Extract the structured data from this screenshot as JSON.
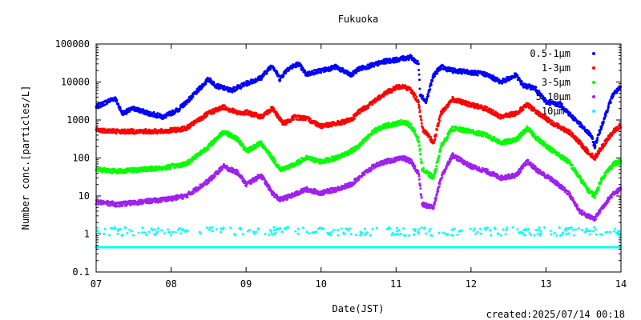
{
  "chart_data": {
    "type": "scatter",
    "title": "Fukuoka",
    "xlabel": "Date(JST)",
    "ylabel": "Number conc.[particles/L]",
    "y_scale": "log",
    "ylim": [
      0.1,
      100000
    ],
    "xlim": [
      7,
      14
    ],
    "x_ticks": [
      "07",
      "08",
      "09",
      "10",
      "11",
      "12",
      "13",
      "14"
    ],
    "y_ticks": [
      "0.1",
      "1",
      "10",
      "100",
      "1000",
      "10000",
      "100000"
    ],
    "legend_position": "top-right",
    "grid": false,
    "footer": "created:2025/07/14 00:18",
    "series": [
      {
        "name": "0.5-1μm",
        "color": "#0000ff",
        "x": [
          7.0,
          7.25,
          7.35,
          7.5,
          7.7,
          7.9,
          8.1,
          8.3,
          8.5,
          8.6,
          8.8,
          9.0,
          9.2,
          9.35,
          9.45,
          9.55,
          9.7,
          9.8,
          10.0,
          10.2,
          10.4,
          10.5,
          10.7,
          10.85,
          11.0,
          11.1,
          11.2,
          11.3,
          11.32,
          11.4,
          11.5,
          11.6,
          11.75,
          12.0,
          12.2,
          12.4,
          12.6,
          12.7,
          12.85,
          13.0,
          13.2,
          13.35,
          13.4,
          13.5,
          13.6,
          13.65,
          13.7,
          13.8,
          13.9,
          14.0
        ],
        "y": [
          2200,
          3800,
          1500,
          2000,
          1500,
          1200,
          1900,
          4500,
          12000,
          8000,
          6000,
          9000,
          13000,
          28000,
          12000,
          22000,
          30000,
          16000,
          20000,
          25000,
          15000,
          22000,
          28000,
          35000,
          38000,
          42000,
          45000,
          30000,
          5000,
          3000,
          15000,
          25000,
          20000,
          18000,
          16000,
          10000,
          15000,
          8000,
          7000,
          3000,
          2500,
          1200,
          1000,
          600,
          400,
          200,
          400,
          1500,
          5000,
          7000
        ]
      },
      {
        "name": "1-3μm",
        "color": "#ff0000",
        "x": [
          7.0,
          7.3,
          7.6,
          7.9,
          8.2,
          8.5,
          8.7,
          8.9,
          9.0,
          9.2,
          9.35,
          9.5,
          9.65,
          9.8,
          10.0,
          10.2,
          10.4,
          10.5,
          10.7,
          10.85,
          11.0,
          11.1,
          11.2,
          11.3,
          11.35,
          11.5,
          11.6,
          11.75,
          12.0,
          12.2,
          12.4,
          12.6,
          12.75,
          12.9,
          13.1,
          13.3,
          13.45,
          13.55,
          13.65,
          13.75,
          13.9,
          14.0
        ],
        "y": [
          550,
          500,
          500,
          500,
          600,
          1500,
          2200,
          1500,
          1600,
          1200,
          2000,
          800,
          1200,
          1100,
          700,
          800,
          1000,
          1600,
          3000,
          5000,
          7000,
          8000,
          6000,
          3000,
          600,
          250,
          1500,
          3500,
          2500,
          2000,
          1200,
          1500,
          2500,
          1500,
          800,
          500,
          250,
          150,
          100,
          200,
          500,
          700
        ]
      },
      {
        "name": "3-5μm",
        "color": "#00ff00",
        "x": [
          7.0,
          7.3,
          7.6,
          7.9,
          8.2,
          8.5,
          8.7,
          8.9,
          9.0,
          9.2,
          9.35,
          9.45,
          9.6,
          9.8,
          10.0,
          10.2,
          10.4,
          10.5,
          10.7,
          10.85,
          11.0,
          11.1,
          11.2,
          11.3,
          11.35,
          11.5,
          11.6,
          11.75,
          12.0,
          12.2,
          12.4,
          12.6,
          12.75,
          12.9,
          13.1,
          13.3,
          13.45,
          13.55,
          13.65,
          13.75,
          13.9,
          14.0
        ],
        "y": [
          50,
          45,
          50,
          55,
          70,
          200,
          500,
          300,
          150,
          250,
          100,
          50,
          60,
          100,
          80,
          100,
          150,
          200,
          500,
          700,
          800,
          900,
          700,
          300,
          50,
          30,
          200,
          600,
          500,
          400,
          250,
          300,
          600,
          300,
          150,
          80,
          30,
          15,
          10,
          30,
          70,
          80
        ]
      },
      {
        "name": "5-10μm",
        "color": "#a020f0",
        "x": [
          7.0,
          7.3,
          7.6,
          7.9,
          8.2,
          8.5,
          8.7,
          8.9,
          9.0,
          9.2,
          9.35,
          9.45,
          9.6,
          9.8,
          10.0,
          10.2,
          10.4,
          10.5,
          10.7,
          10.85,
          11.0,
          11.1,
          11.2,
          11.3,
          11.35,
          11.5,
          11.6,
          11.75,
          12.0,
          12.2,
          12.4,
          12.6,
          12.75,
          12.9,
          13.1,
          13.3,
          13.45,
          13.55,
          13.65,
          13.75,
          13.9,
          14.0
        ],
        "y": [
          7,
          6,
          7,
          8,
          10,
          25,
          60,
          40,
          20,
          35,
          12,
          8,
          10,
          15,
          12,
          15,
          20,
          30,
          60,
          80,
          90,
          100,
          80,
          40,
          6,
          5,
          30,
          120,
          60,
          45,
          30,
          35,
          80,
          45,
          25,
          12,
          4,
          3,
          2.5,
          5,
          12,
          15
        ]
      },
      {
        "name": "10μm-",
        "color": "#00ffff",
        "x": [
          7.0,
          7.5,
          8.0,
          8.5,
          9.0,
          9.5,
          9.75,
          9.85,
          10.0,
          10.5,
          11.0,
          11.5,
          12.0,
          12.5,
          12.9,
          13.0,
          13.5,
          14.0
        ],
        "y": [
          0.45,
          0.45,
          0.45,
          0.45,
          0.45,
          0.45,
          1.8,
          0.9,
          0.45,
          0.45,
          0.45,
          0.45,
          0.45,
          0.45,
          1.5,
          0.9,
          0.45,
          0.45
        ]
      }
    ]
  }
}
